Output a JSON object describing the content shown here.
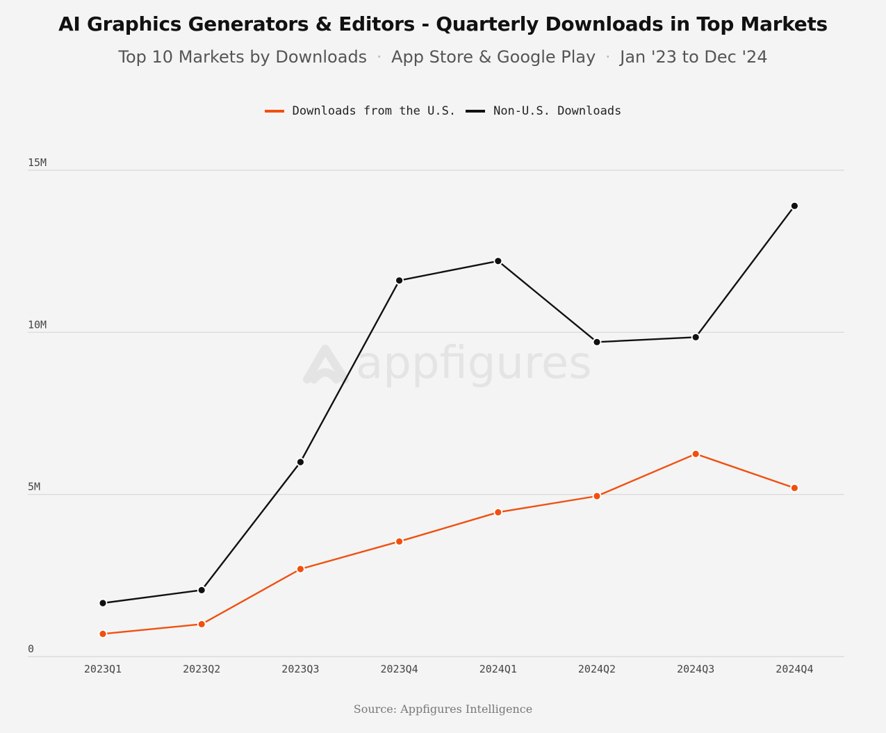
{
  "header": {
    "title": "AI Graphics Generators & Editors - Quarterly Downloads in Top Markets",
    "subtitle_parts": [
      "Top 10 Markets by Downloads",
      "App Store & Google Play",
      "Jan '23 to Dec '24"
    ],
    "subtitle_separator": "·"
  },
  "watermark": {
    "text": "appfigures",
    "icon": "appfigures-logo-icon"
  },
  "source": "Source: Appfigures Intelligence",
  "colors": {
    "us": "#f0500f",
    "non_us": "#111111",
    "grid": "#d6d6d6",
    "background": "#f4f4f4"
  },
  "chart_data": {
    "type": "line",
    "title": "AI Graphics Generators & Editors - Quarterly Downloads in Top Markets",
    "subtitle": "Top 10 Markets by Downloads · App Store & Google Play · Jan '23 to Dec '24",
    "xlabel": "",
    "ylabel": "",
    "categories": [
      "2023Q1",
      "2023Q2",
      "2023Q3",
      "2023Q4",
      "2024Q1",
      "2024Q2",
      "2024Q3",
      "2024Q4"
    ],
    "ylim": [
      0,
      15000000
    ],
    "yticks": [
      {
        "value": 0,
        "label": "0"
      },
      {
        "value": 5000000,
        "label": "5M"
      },
      {
        "value": 10000000,
        "label": "10M"
      },
      {
        "value": 15000000,
        "label": "15M"
      }
    ],
    "grid": true,
    "legend_position": "top-center",
    "series": [
      {
        "name": "Downloads from the U.S.",
        "color": "#f0500f",
        "values": [
          700000,
          1000000,
          2700000,
          3550000,
          4450000,
          4950000,
          6250000,
          5200000
        ]
      },
      {
        "name": "Non-U.S. Downloads",
        "color": "#111111",
        "values": [
          1650000,
          2050000,
          6000000,
          11600000,
          12200000,
          9700000,
          9850000,
          13900000
        ]
      }
    ]
  }
}
